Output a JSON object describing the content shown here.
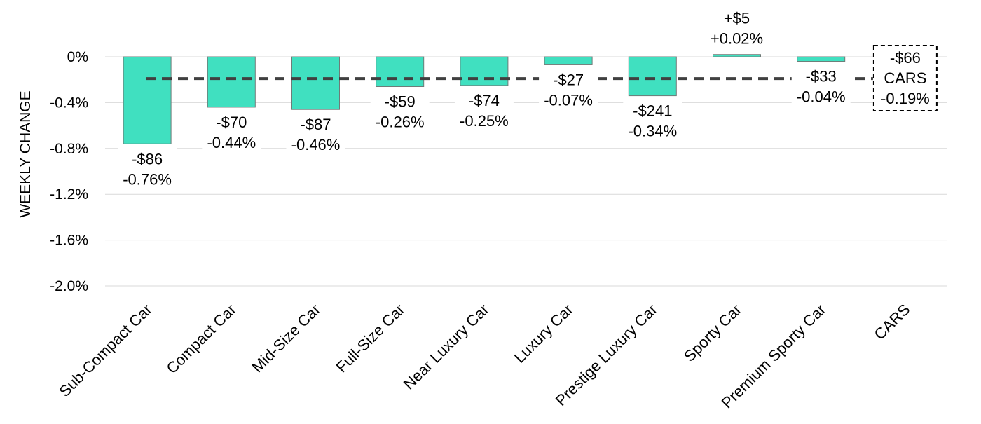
{
  "chart_data": {
    "type": "bar",
    "ylabel": "WEEKLY CHANGE",
    "ylim": [
      -2.0,
      0
    ],
    "yticks": [
      "0%",
      "-0.4%",
      "-0.8%",
      "-1.2%",
      "-1.6%",
      "-2.0%"
    ],
    "ytick_values": [
      0,
      -0.4,
      -0.8,
      -1.2,
      -1.6,
      -2.0
    ],
    "grid": true,
    "categories": [
      "Sub-Compact Car",
      "Compact Car",
      "Mid-Size Car",
      "Full-Size Car",
      "Near Luxury Car",
      "Luxury Car",
      "Prestige Luxury Car",
      "Sporty Car",
      "Premium Sporty Car",
      "CARS"
    ],
    "values": [
      -0.76,
      -0.44,
      -0.46,
      -0.26,
      -0.25,
      -0.07,
      -0.34,
      0.02,
      -0.04,
      null
    ],
    "dollar_labels": [
      "-$86",
      "-$70",
      "-$87",
      "-$59",
      "-$74",
      "-$27",
      "-$241",
      "+$5",
      "-$33"
    ],
    "percent_labels": [
      "-0.76%",
      "-0.44%",
      "-0.46%",
      "-0.26%",
      "-0.25%",
      "-0.07%",
      "-0.34%",
      "+0.02%",
      "-0.04%"
    ],
    "average": {
      "value": -0.19,
      "dollar_label": "-$66",
      "name_label": "CARS",
      "percent_label": "-0.19%"
    },
    "colors": {
      "bar": "#40e0c0",
      "average_line": "#404040"
    }
  }
}
